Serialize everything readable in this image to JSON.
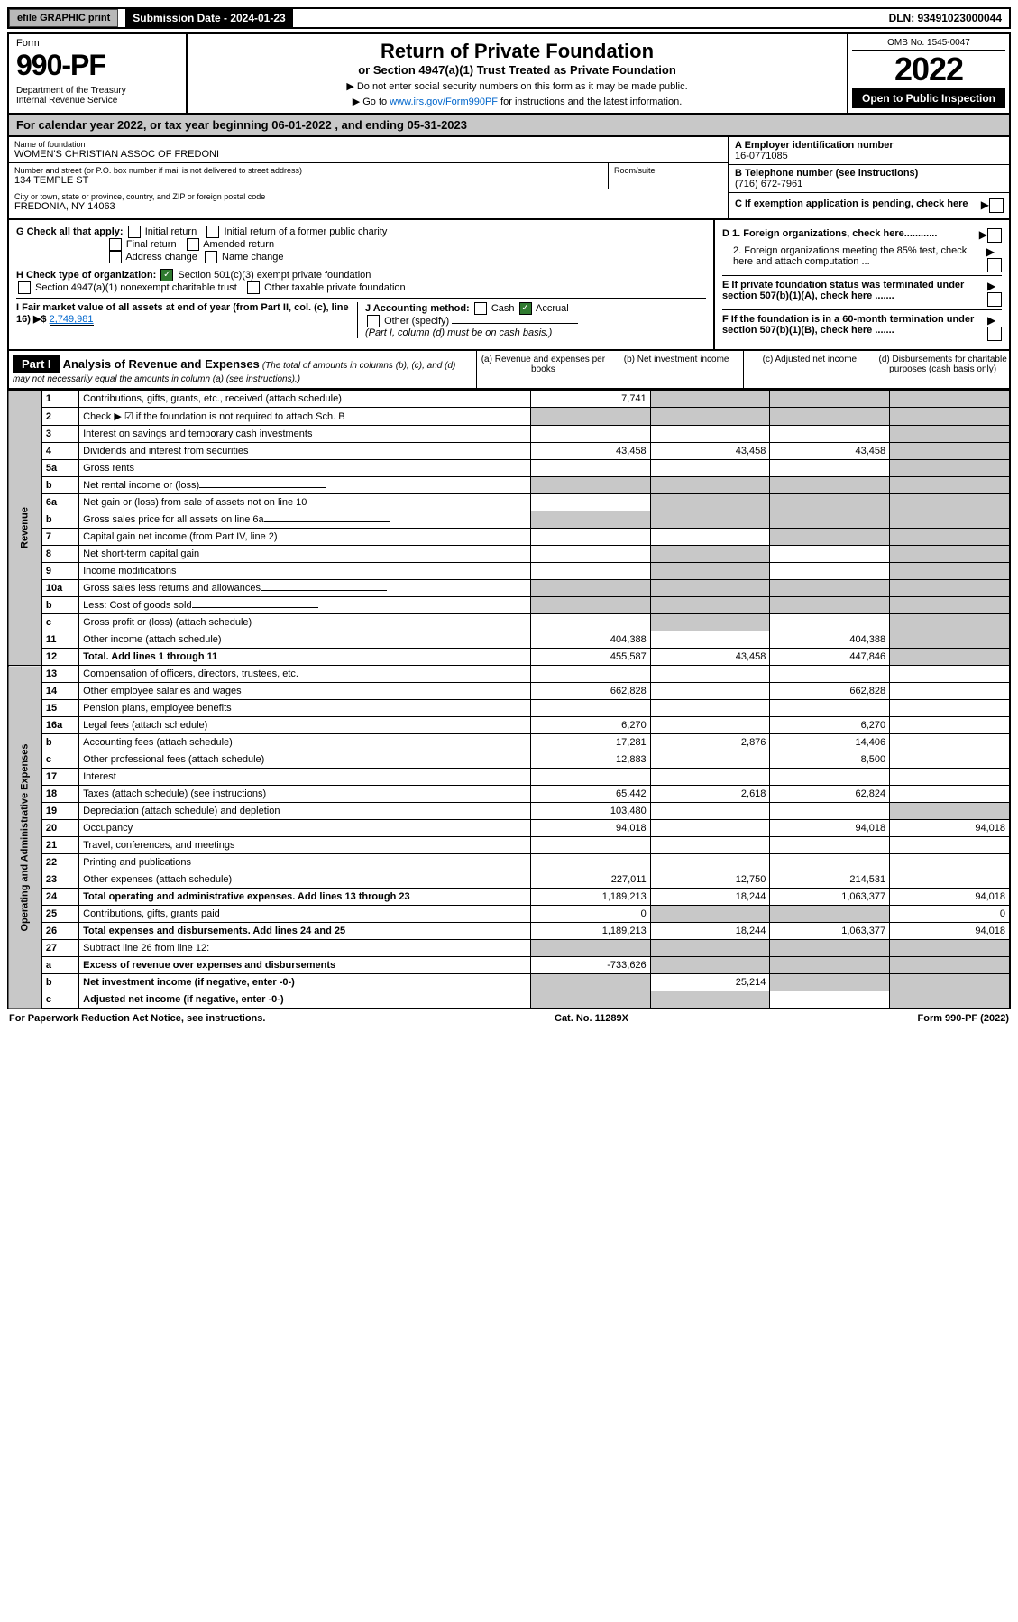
{
  "top": {
    "efile": "efile GRAPHIC print",
    "submission": "Submission Date - 2024-01-23",
    "dln": "DLN: 93491023000044"
  },
  "header": {
    "form_word": "Form",
    "form_number": "990-PF",
    "dept": "Department of the Treasury\nInternal Revenue Service",
    "title": "Return of Private Foundation",
    "subtitle": "or Section 4947(a)(1) Trust Treated as Private Foundation",
    "note1": "▶ Do not enter social security numbers on this form as it may be made public.",
    "note2_pre": "▶ Go to ",
    "note2_link": "www.irs.gov/Form990PF",
    "note2_post": " for instructions and the latest information.",
    "omb": "OMB No. 1545-0047",
    "year": "2022",
    "open": "Open to Public Inspection"
  },
  "calendar": "For calendar year 2022, or tax year beginning 06-01-2022              , and ending 05-31-2023",
  "info": {
    "name_label": "Name of foundation",
    "name": "WOMEN'S CHRISTIAN ASSOC OF FREDONI",
    "addr_label": "Number and street (or P.O. box number if mail is not delivered to street address)",
    "addr": "134 TEMPLE ST",
    "room_label": "Room/suite",
    "city_label": "City or town, state or province, country, and ZIP or foreign postal code",
    "city": "FREDONIA, NY  14063",
    "ein_label": "A Employer identification number",
    "ein": "16-0771085",
    "phone_label": "B Telephone number (see instructions)",
    "phone": "(716) 672-7961",
    "c_label": "C If exemption application is pending, check here"
  },
  "checks": {
    "g_label": "G Check all that apply:",
    "g_opts": [
      "Initial return",
      "Initial return of a former public charity",
      "Final return",
      "Amended return",
      "Address change",
      "Name change"
    ],
    "h_label": "H Check type of organization:",
    "h1": "Section 501(c)(3) exempt private foundation",
    "h2": "Section 4947(a)(1) nonexempt charitable trust",
    "h3": "Other taxable private foundation",
    "i_label": "I Fair market value of all assets at end of year (from Part II, col. (c), line 16) ▶$ ",
    "i_val": "2,749,981",
    "j_label": "J Accounting method:",
    "j_cash": "Cash",
    "j_accrual": "Accrual",
    "j_other": "Other (specify)",
    "j_note": "(Part I, column (d) must be on cash basis.)",
    "d1": "D 1. Foreign organizations, check here............",
    "d2": "2. Foreign organizations meeting the 85% test, check here and attach computation ...",
    "e": "E  If private foundation status was terminated under section 507(b)(1)(A), check here .......",
    "f": "F  If the foundation is in a 60-month termination under section 507(b)(1)(B), check here .......",
    "arrow": "▶"
  },
  "part1": {
    "label": "Part I",
    "title": "Analysis of Revenue and Expenses",
    "title_note": " (The total of amounts in columns (b), (c), and (d) may not necessarily equal the amounts in column (a) (see instructions).)",
    "col_a": "(a)   Revenue and expenses per books",
    "col_b": "(b)  Net investment income",
    "col_c": "(c)  Adjusted net income",
    "col_d": "(d)  Disbursements for charitable purposes (cash basis only)"
  },
  "side_labels": {
    "revenue": "Revenue",
    "expenses": "Operating and Administrative Expenses"
  },
  "rows": [
    {
      "n": "1",
      "l": "Contributions, gifts, grants, etc., received (attach schedule)",
      "a": "7,741",
      "b": "",
      "c": "",
      "d": "",
      "bg": true,
      "cg": true,
      "dg": true
    },
    {
      "n": "2",
      "l": "Check ▶ ☑ if the foundation is not required to attach Sch. B",
      "bold_not": true,
      "novals": true
    },
    {
      "n": "3",
      "l": "Interest on savings and temporary cash investments",
      "a": "",
      "b": "",
      "c": "",
      "d": "",
      "dg": true
    },
    {
      "n": "4",
      "l": "Dividends and interest from securities",
      "a": "43,458",
      "b": "43,458",
      "c": "43,458",
      "d": "",
      "dg": true
    },
    {
      "n": "5a",
      "l": "Gross rents",
      "a": "",
      "b": "",
      "c": "",
      "d": "",
      "dg": true
    },
    {
      "n": "b",
      "l": "Net rental income or (loss)",
      "novals": true,
      "underline": true
    },
    {
      "n": "6a",
      "l": "Net gain or (loss) from sale of assets not on line 10",
      "a": "",
      "bg": true,
      "cg": true,
      "dg": true
    },
    {
      "n": "b",
      "l": "Gross sales price for all assets on line 6a",
      "novals": true,
      "underline": true
    },
    {
      "n": "7",
      "l": "Capital gain net income (from Part IV, line 2)",
      "a": "",
      "b": "",
      "cg": true,
      "dg": true
    },
    {
      "n": "8",
      "l": "Net short-term capital gain",
      "a": "",
      "bg": true,
      "c": "",
      "dg": true
    },
    {
      "n": "9",
      "l": "Income modifications",
      "bg": true,
      "a": "",
      "c": "",
      "dg": true
    },
    {
      "n": "10a",
      "l": "Gross sales less returns and allowances",
      "novals": true,
      "underline": true
    },
    {
      "n": "b",
      "l": "Less: Cost of goods sold",
      "novals": true,
      "underline": true
    },
    {
      "n": "c",
      "l": "Gross profit or (loss) (attach schedule)",
      "a": "",
      "bg": true,
      "c": "",
      "dg": true
    },
    {
      "n": "11",
      "l": "Other income (attach schedule)",
      "a": "404,388",
      "b": "",
      "c": "404,388",
      "dg": true
    },
    {
      "n": "12",
      "l": "Total. Add lines 1 through 11",
      "bold": true,
      "a": "455,587",
      "b": "43,458",
      "c": "447,846",
      "dg": true
    },
    {
      "n": "13",
      "l": "Compensation of officers, directors, trustees, etc.",
      "a": "",
      "b": "",
      "c": "",
      "d": ""
    },
    {
      "n": "14",
      "l": "Other employee salaries and wages",
      "a": "662,828",
      "b": "",
      "c": "662,828",
      "d": ""
    },
    {
      "n": "15",
      "l": "Pension plans, employee benefits",
      "a": "",
      "b": "",
      "c": "",
      "d": ""
    },
    {
      "n": "16a",
      "l": "Legal fees (attach schedule)",
      "a": "6,270",
      "b": "",
      "c": "6,270",
      "d": ""
    },
    {
      "n": "b",
      "l": "Accounting fees (attach schedule)",
      "a": "17,281",
      "b": "2,876",
      "c": "14,406",
      "d": ""
    },
    {
      "n": "c",
      "l": "Other professional fees (attach schedule)",
      "a": "12,883",
      "b": "",
      "c": "8,500",
      "d": ""
    },
    {
      "n": "17",
      "l": "Interest",
      "a": "",
      "b": "",
      "c": "",
      "d": ""
    },
    {
      "n": "18",
      "l": "Taxes (attach schedule) (see instructions)",
      "a": "65,442",
      "b": "2,618",
      "c": "62,824",
      "d": ""
    },
    {
      "n": "19",
      "l": "Depreciation (attach schedule) and depletion",
      "a": "103,480",
      "b": "",
      "c": "",
      "dg": true
    },
    {
      "n": "20",
      "l": "Occupancy",
      "a": "94,018",
      "b": "",
      "c": "94,018",
      "d": "94,018"
    },
    {
      "n": "21",
      "l": "Travel, conferences, and meetings",
      "a": "",
      "b": "",
      "c": "",
      "d": ""
    },
    {
      "n": "22",
      "l": "Printing and publications",
      "a": "",
      "b": "",
      "c": "",
      "d": ""
    },
    {
      "n": "23",
      "l": "Other expenses (attach schedule)",
      "a": "227,011",
      "b": "12,750",
      "c": "214,531",
      "d": ""
    },
    {
      "n": "24",
      "l": "Total operating and administrative expenses. Add lines 13 through 23",
      "bold": true,
      "a": "1,189,213",
      "b": "18,244",
      "c": "1,063,377",
      "d": "94,018"
    },
    {
      "n": "25",
      "l": "Contributions, gifts, grants paid",
      "a": "0",
      "bg": true,
      "cg": true,
      "d": "0"
    },
    {
      "n": "26",
      "l": "Total expenses and disbursements. Add lines 24 and 25",
      "bold": true,
      "a": "1,189,213",
      "b": "18,244",
      "c": "1,063,377",
      "d": "94,018"
    },
    {
      "n": "27",
      "l": "Subtract line 26 from line 12:",
      "novals": true,
      "ag": true,
      "bg": true,
      "cg": true,
      "dg": true
    },
    {
      "n": "a",
      "l": "Excess of revenue over expenses and disbursements",
      "bold": true,
      "a": "-733,626",
      "bg": true,
      "cg": true,
      "dg": true
    },
    {
      "n": "b",
      "l": "Net investment income (if negative, enter -0-)",
      "bold": true,
      "ag": true,
      "b": "25,214",
      "cg": true,
      "dg": true
    },
    {
      "n": "c",
      "l": "Adjusted net income (if negative, enter -0-)",
      "bold": true,
      "ag": true,
      "bg": true,
      "c": "",
      "dg": true
    }
  ],
  "footer": {
    "left": "For Paperwork Reduction Act Notice, see instructions.",
    "center": "Cat. No. 11289X",
    "right": "Form 990-PF (2022)"
  }
}
